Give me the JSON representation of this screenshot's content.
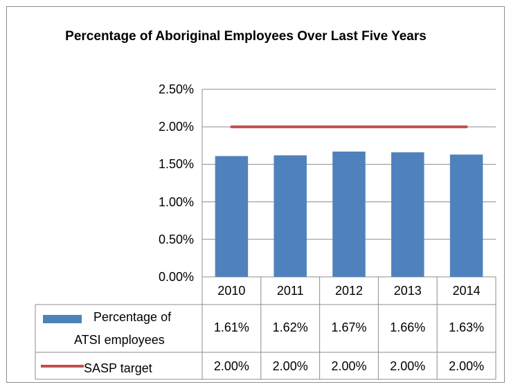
{
  "chart_data": {
    "type": "bar",
    "title": "Percentage of Aboriginal Employees Over Last Five Years",
    "categories": [
      "2010",
      "2011",
      "2012",
      "2013",
      "2014"
    ],
    "ylim": [
      0,
      2.5
    ],
    "yticks": [
      "0.00%",
      "0.50%",
      "1.00%",
      "1.50%",
      "2.00%",
      "2.50%"
    ],
    "grid": true,
    "legend": "data table",
    "series": [
      {
        "name": "Percentage of ATSI employees",
        "kind": "bar",
        "color": "#4f81bd",
        "values": [
          1.61,
          1.62,
          1.67,
          1.66,
          1.63
        ],
        "labels": [
          "1.61%",
          "1.62%",
          "1.67%",
          "1.66%",
          "1.63%"
        ]
      },
      {
        "name": "SASP target",
        "kind": "line",
        "color": "#c0504d",
        "values": [
          2.0,
          2.0,
          2.0,
          2.0,
          2.0
        ],
        "labels": [
          "2.00%",
          "2.00%",
          "2.00%",
          "2.00%",
          "2.00%"
        ]
      }
    ]
  },
  "table": {
    "row1_label_line1": "Percentage of",
    "row1_label_line2": "ATSI employees",
    "row2_label": "SASP target"
  }
}
